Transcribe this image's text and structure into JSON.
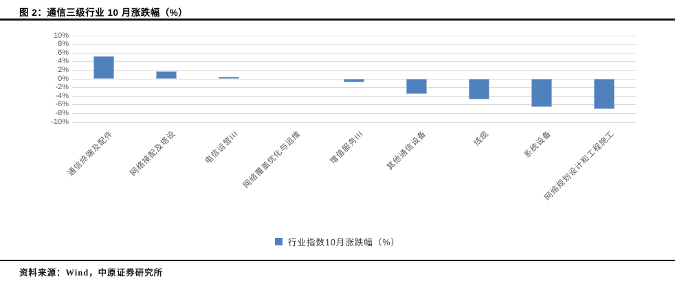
{
  "title": "图 2：通信三级行业 10 月涨跌幅（%）",
  "source": "资料来源：Wind，中原证券研究所",
  "colors": {
    "bar": "#4F81BD",
    "bar_border": "#9DB9DC",
    "gridline": "#D9D9D9",
    "axis_text": "#595959",
    "category_text": "#595959",
    "legend_text": "#333333",
    "divider": "#111111"
  },
  "legend": {
    "position": "bottom"
  },
  "chart_data": {
    "type": "bar",
    "title": "图 2：通信三级行业 10 月涨跌幅（%）",
    "categories": [
      "通信终端及配件",
      "网络接配及塔设",
      "电信运营III",
      "网络覆盖优化与运维",
      "增值服务III",
      "其他通信设备",
      "线缆",
      "系统设备",
      "网络规划设计和工程施工"
    ],
    "series": [
      {
        "name": "行业指数10月涨跌幅（%）",
        "values": [
          5.2,
          1.8,
          0.5,
          0.0,
          -0.8,
          -3.5,
          -4.8,
          -6.5,
          -7.0
        ]
      }
    ],
    "xlabel": "",
    "ylabel": "",
    "ylim": [
      -10,
      10
    ],
    "ytick_step": 2,
    "ytick_labels": [
      "10%",
      "8%",
      "6%",
      "4%",
      "2%",
      "0%",
      "-2%",
      "-4%",
      "-6%",
      "-8%",
      "-10%"
    ],
    "grid": true,
    "legend_position": "bottom"
  }
}
